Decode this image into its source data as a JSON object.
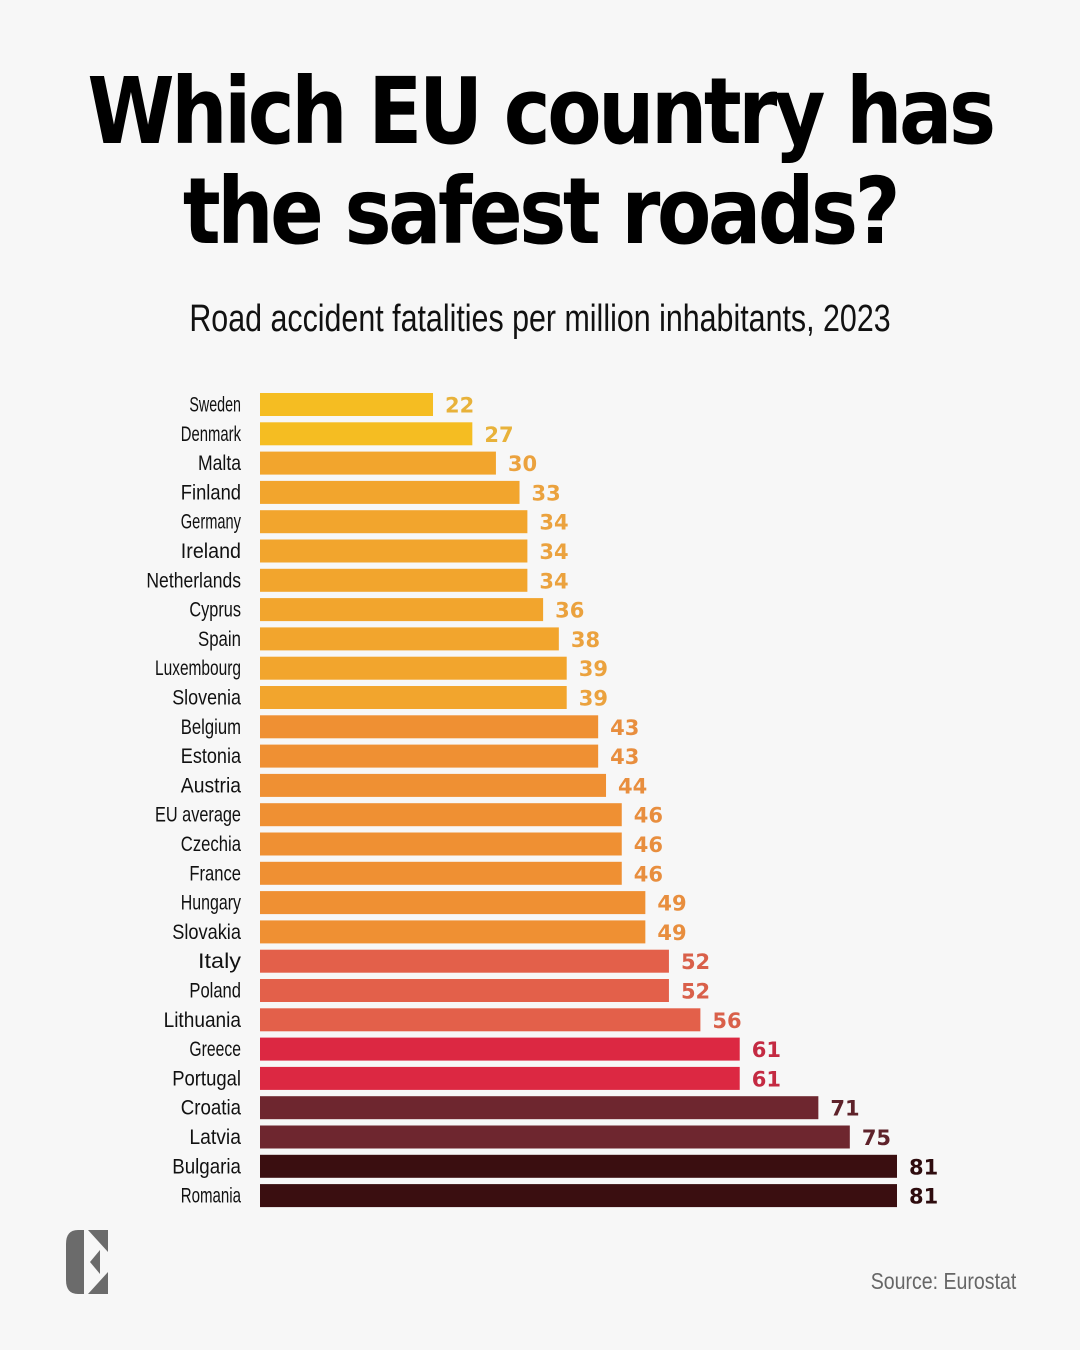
{
  "header": {
    "title_line1": "Which EU country has",
    "title_line2": "the safest roads?",
    "subtitle": "Road accident fatalities per million inhabitants, 2023"
  },
  "footer": {
    "source": "Source: Eurostat",
    "logo_icon": "stylized-E-logo"
  },
  "chart_data": {
    "type": "bar",
    "orientation": "horizontal",
    "title": "Which EU country has the safest roads?",
    "subtitle": "Road accident fatalities per million inhabitants, 2023",
    "xlabel": "",
    "ylabel": "",
    "xlim": [
      0,
      81
    ],
    "grid": false,
    "legend": "none",
    "categories": [
      "Sweden",
      "Denmark",
      "Malta",
      "Finland",
      "Germany",
      "Ireland",
      "Netherlands",
      "Cyprus",
      "Spain",
      "Luxembourg",
      "Slovenia",
      "Belgium",
      "Estonia",
      "Austria",
      "EU average",
      "Czechia",
      "France",
      "Hungary",
      "Slovakia",
      "Italy",
      "Poland",
      "Lithuania",
      "Greece",
      "Portugal",
      "Croatia",
      "Latvia",
      "Bulgaria",
      "Romania"
    ],
    "values": [
      22,
      27,
      30,
      33,
      34,
      34,
      34,
      36,
      38,
      39,
      39,
      43,
      43,
      44,
      46,
      46,
      46,
      49,
      49,
      52,
      52,
      56,
      61,
      61,
      71,
      75,
      81,
      81
    ],
    "labels": [
      "22",
      "27",
      "30",
      "33",
      "34",
      "34",
      "34",
      "36",
      "38",
      "39",
      "39",
      "43",
      "43",
      "44",
      "46",
      "46",
      "46",
      "49",
      "49",
      "52",
      "52",
      "56",
      "61",
      "61",
      "71",
      "75",
      "81",
      "81"
    ],
    "bar_colors": [
      "#f5bd22",
      "#f5bd22",
      "#f2a52d",
      "#f2a52d",
      "#f2a52d",
      "#f2a52d",
      "#f2a52d",
      "#f2a52d",
      "#f2a52d",
      "#f2a52d",
      "#f2a52d",
      "#ef9033",
      "#ef9033",
      "#ef9033",
      "#ef9033",
      "#ef9033",
      "#ef9033",
      "#ef9033",
      "#ef9033",
      "#e3604a",
      "#e3604a",
      "#e3604a",
      "#dc2842",
      "#dc2842",
      "#6e262f",
      "#6e262f",
      "#3a0e10",
      "#3a0e10"
    ],
    "label_colors": [
      "#e8b23a",
      "#e8b23a",
      "#eba23e",
      "#eba23e",
      "#eba23e",
      "#eba23e",
      "#eba23e",
      "#eba23e",
      "#eba23e",
      "#eba23e",
      "#eba23e",
      "#e88e3e",
      "#e88e3e",
      "#e88e3e",
      "#e88e3e",
      "#e88e3e",
      "#e88e3e",
      "#e88e3e",
      "#e88e3e",
      "#d9604a",
      "#d9604a",
      "#d9604a",
      "#c42a42",
      "#c42a42",
      "#5e222a",
      "#5e222a",
      "#2e0c0e",
      "#2e0c0e"
    ]
  }
}
